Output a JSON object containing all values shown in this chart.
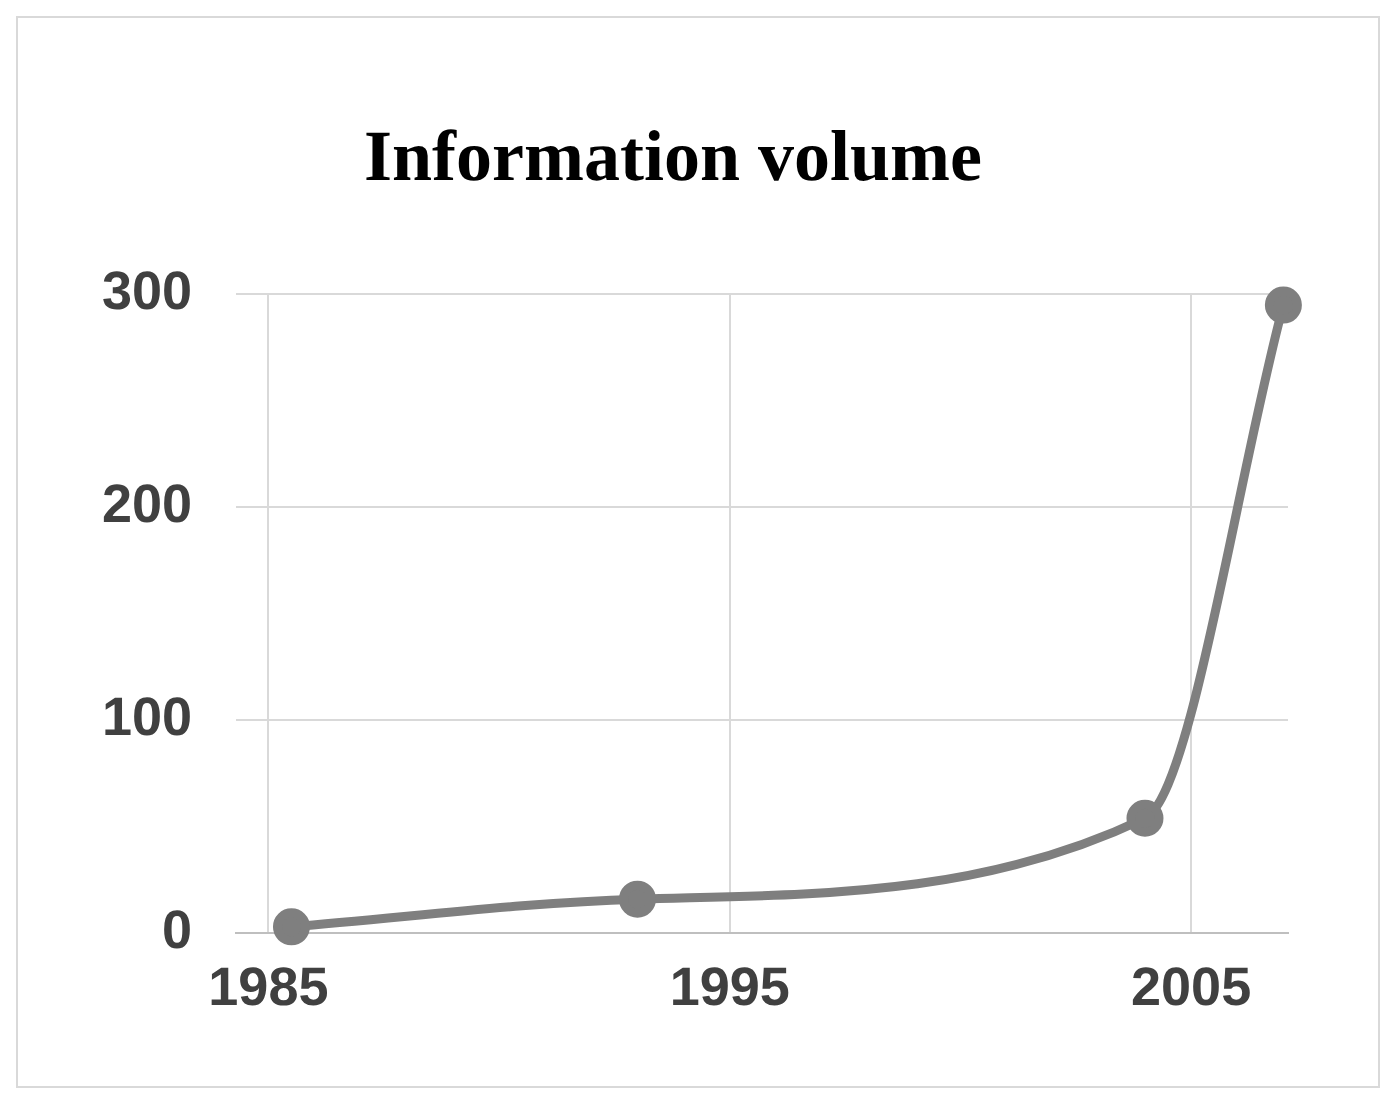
{
  "chart_data": {
    "type": "line",
    "title": "Information volume",
    "x": [
      1985.5,
      1993,
      2004,
      2007
    ],
    "series": [
      {
        "color": "#7f7f7f",
        "values": [
          3,
          16,
          54,
          295
        ]
      }
    ],
    "xlim": [
      1984.3,
      2007.1
    ],
    "xticks": [
      1985,
      1995,
      2005
    ],
    "ylim": [
      0,
      300
    ],
    "yticks": [
      0,
      100,
      200,
      300
    ],
    "grid": true,
    "legend": false,
    "marker": "circle",
    "line_style": "solid"
  }
}
